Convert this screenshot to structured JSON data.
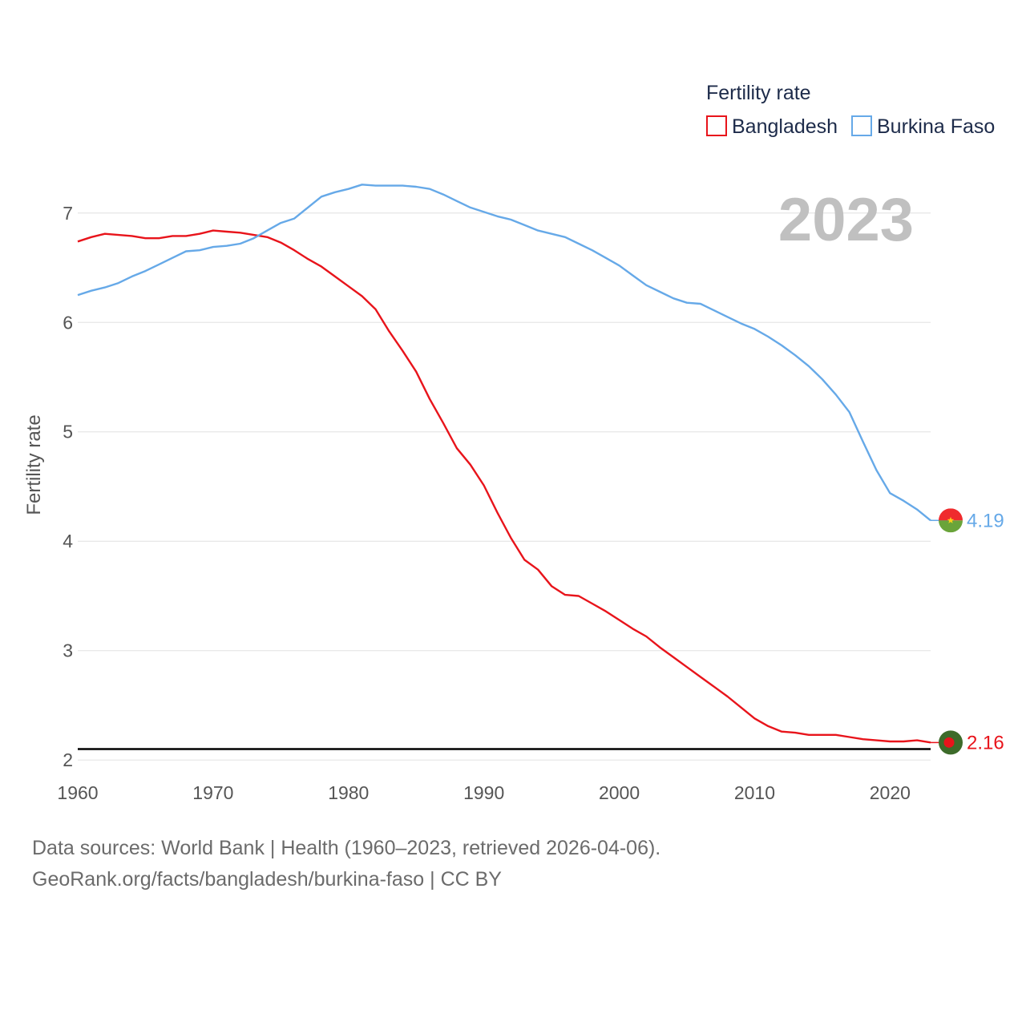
{
  "chart_data": {
    "type": "line",
    "title": "",
    "xlabel": "",
    "ylabel": "Fertility rate",
    "xlim": [
      1960,
      2023
    ],
    "ylim": [
      1.95,
      7.35
    ],
    "xticks": [
      1960,
      1970,
      1980,
      1990,
      2000,
      2010,
      2020
    ],
    "yticks": [
      2,
      3,
      4,
      5,
      6,
      7
    ],
    "grid": true,
    "legend": {
      "title": "Fertility rate",
      "position": "top-right"
    },
    "year_label": "2023",
    "reference_line": {
      "y": 2.1
    },
    "x": [
      1960,
      1961,
      1962,
      1963,
      1964,
      1965,
      1966,
      1967,
      1968,
      1969,
      1970,
      1971,
      1972,
      1973,
      1974,
      1975,
      1976,
      1977,
      1978,
      1979,
      1980,
      1981,
      1982,
      1983,
      1984,
      1985,
      1986,
      1987,
      1988,
      1989,
      1990,
      1991,
      1992,
      1993,
      1994,
      1995,
      1996,
      1997,
      1998,
      1999,
      2000,
      2001,
      2002,
      2003,
      2004,
      2005,
      2006,
      2007,
      2008,
      2009,
      2010,
      2011,
      2012,
      2013,
      2014,
      2015,
      2016,
      2017,
      2018,
      2019,
      2020,
      2021,
      2022,
      2023
    ],
    "series": [
      {
        "name": "Bangladesh",
        "color": "#e8141b",
        "end_value": "2.16",
        "values": [
          6.74,
          6.78,
          6.81,
          6.8,
          6.79,
          6.77,
          6.77,
          6.79,
          6.79,
          6.81,
          6.84,
          6.83,
          6.82,
          6.8,
          6.78,
          6.73,
          6.66,
          6.58,
          6.51,
          6.42,
          6.33,
          6.24,
          6.12,
          5.92,
          5.74,
          5.55,
          5.3,
          5.08,
          4.85,
          4.7,
          4.51,
          4.26,
          4.03,
          3.83,
          3.74,
          3.59,
          3.51,
          3.5,
          3.43,
          3.36,
          3.28,
          3.2,
          3.13,
          3.03,
          2.94,
          2.85,
          2.76,
          2.67,
          2.58,
          2.48,
          2.38,
          2.31,
          2.26,
          2.25,
          2.23,
          2.23,
          2.23,
          2.21,
          2.19,
          2.18,
          2.17,
          2.17,
          2.18,
          2.16
        ]
      },
      {
        "name": "Burkina Faso",
        "color": "#66a9e8",
        "end_value": "4.19",
        "values": [
          6.25,
          6.29,
          6.32,
          6.36,
          6.42,
          6.47,
          6.53,
          6.59,
          6.65,
          6.66,
          6.69,
          6.7,
          6.72,
          6.77,
          6.84,
          6.91,
          6.95,
          7.05,
          7.15,
          7.19,
          7.22,
          7.26,
          7.25,
          7.25,
          7.25,
          7.24,
          7.22,
          7.17,
          7.11,
          7.05,
          7.01,
          6.97,
          6.94,
          6.89,
          6.84,
          6.81,
          6.78,
          6.72,
          6.66,
          6.59,
          6.52,
          6.43,
          6.34,
          6.28,
          6.22,
          6.18,
          6.17,
          6.11,
          6.05,
          5.99,
          5.94,
          5.87,
          5.79,
          5.7,
          5.6,
          5.48,
          5.34,
          5.18,
          4.91,
          4.65,
          4.44,
          4.37,
          4.29,
          4.19
        ]
      }
    ]
  },
  "footer": {
    "line1": "Data sources: World Bank | Health (1960–2023, retrieved 2026-04-06).",
    "line2": "GeoRank.org/facts/bangladesh/burkina-faso | CC BY"
  }
}
